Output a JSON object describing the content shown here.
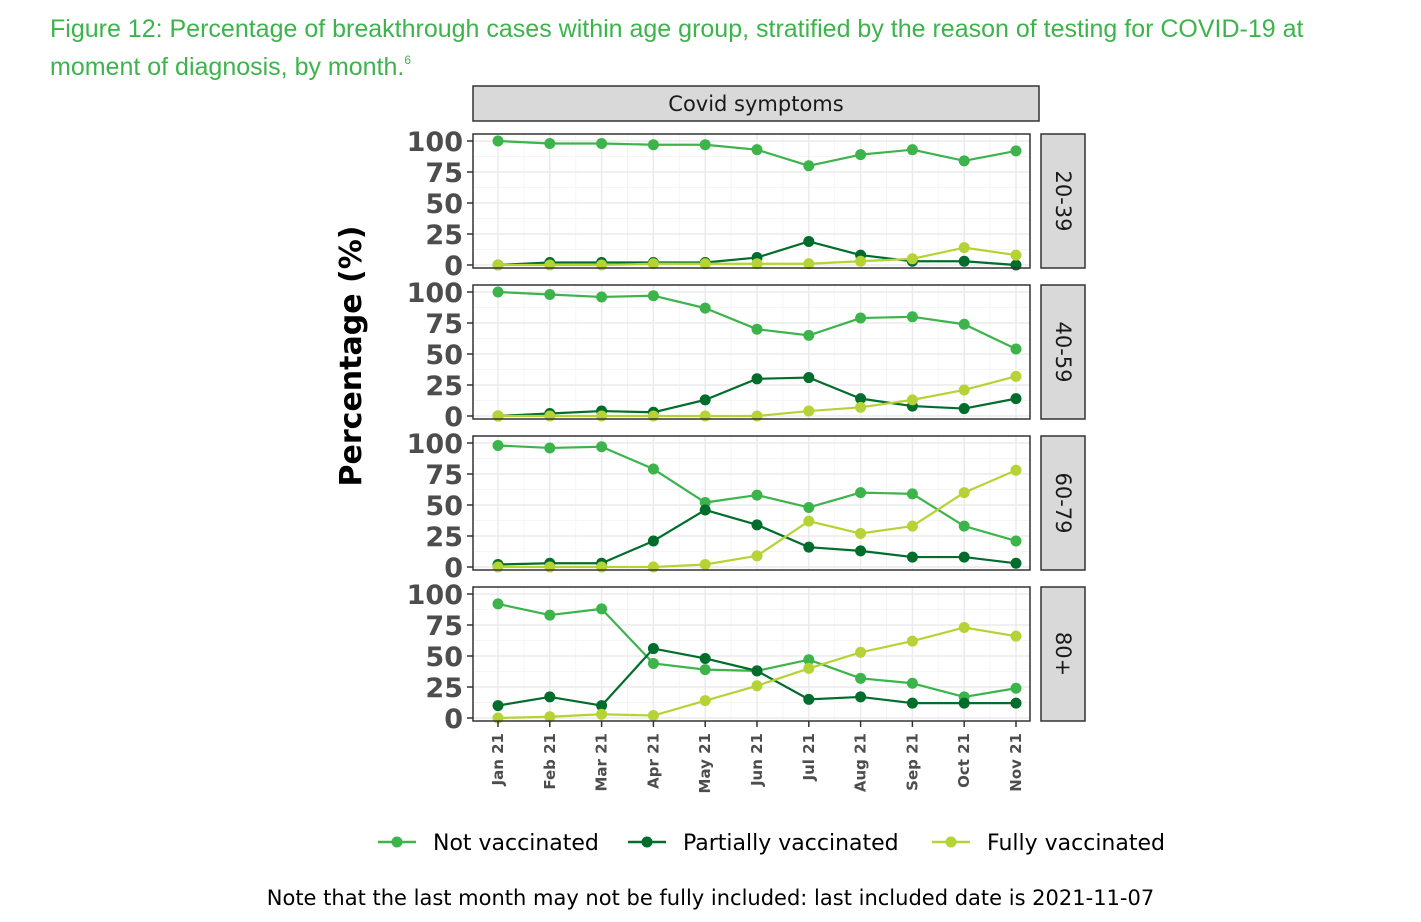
{
  "figure": {
    "caption": "Figure 12: Percentage of breakthrough cases within age group, stratified by the reason of testing for COVID-19 at moment of diagnosis, by month.",
    "footnote_mark": "6",
    "note": "Note that the last month may not be fully included: last included date is 2021-11-07"
  },
  "colors": {
    "not_vaccinated": "#3cb44b",
    "partially_vaccinated": "#006d2c",
    "fully_vaccinated": "#b5d334",
    "strip_fill": "#d9d9d9",
    "grid_major": "#ebebeb",
    "grid_minor": "#f5f5f5"
  },
  "chart_data": {
    "type": "line",
    "facet_column": "Covid symptoms",
    "ylabel": "Percentage (%)",
    "xlabel": "",
    "ylim": [
      0,
      100
    ],
    "yticks": [
      0,
      25,
      50,
      75,
      100
    ],
    "legend_position": "bottom",
    "grid": true,
    "categories": [
      "Jan 21",
      "Feb 21",
      "Mar 21",
      "Apr 21",
      "May 21",
      "Jun 21",
      "Jul 21",
      "Aug 21",
      "Sep 21",
      "Oct 21",
      "Nov 21"
    ],
    "legend": [
      "Not vaccinated",
      "Partially vaccinated",
      "Fully vaccinated"
    ],
    "panels": [
      {
        "label": "20-39",
        "series": [
          {
            "name": "Not vaccinated",
            "values": [
              100,
              98,
              98,
              97,
              97,
              93,
              80,
              89,
              93,
              84,
              92
            ]
          },
          {
            "name": "Partially vaccinated",
            "values": [
              0,
              2,
              2,
              2,
              2,
              6,
              19,
              8,
              3,
              3,
              0
            ]
          },
          {
            "name": "Fully vaccinated",
            "values": [
              0,
              0,
              0,
              1,
              1,
              1,
              1,
              3,
              5,
              14,
              8
            ]
          }
        ]
      },
      {
        "label": "40-59",
        "series": [
          {
            "name": "Not vaccinated",
            "values": [
              100,
              98,
              96,
              97,
              87,
              70,
              65,
              79,
              80,
              74,
              54
            ]
          },
          {
            "name": "Partially vaccinated",
            "values": [
              0,
              2,
              4,
              3,
              13,
              30,
              31,
              14,
              8,
              6,
              14
            ]
          },
          {
            "name": "Fully vaccinated",
            "values": [
              0,
              0,
              0,
              0,
              0,
              0,
              4,
              7,
              13,
              21,
              32
            ]
          }
        ]
      },
      {
        "label": "60-79",
        "series": [
          {
            "name": "Not vaccinated",
            "values": [
              98,
              96,
              97,
              79,
              52,
              58,
              48,
              60,
              59,
              33,
              21
            ]
          },
          {
            "name": "Partially vaccinated",
            "values": [
              2,
              3,
              3,
              21,
              46,
              34,
              16,
              13,
              8,
              8,
              3
            ]
          },
          {
            "name": "Fully vaccinated",
            "values": [
              0,
              0,
              0,
              0,
              2,
              9,
              37,
              27,
              33,
              60,
              78
            ]
          }
        ]
      },
      {
        "label": "80+",
        "series": [
          {
            "name": "Not vaccinated",
            "values": [
              92,
              83,
              88,
              44,
              39,
              38,
              47,
              32,
              28,
              17,
              24
            ]
          },
          {
            "name": "Partially vaccinated",
            "values": [
              10,
              17,
              10,
              56,
              48,
              38,
              15,
              17,
              12,
              12,
              12
            ]
          },
          {
            "name": "Fully vaccinated",
            "values": [
              0,
              1,
              3,
              2,
              14,
              26,
              40,
              53,
              62,
              73,
              66
            ]
          }
        ]
      }
    ]
  }
}
